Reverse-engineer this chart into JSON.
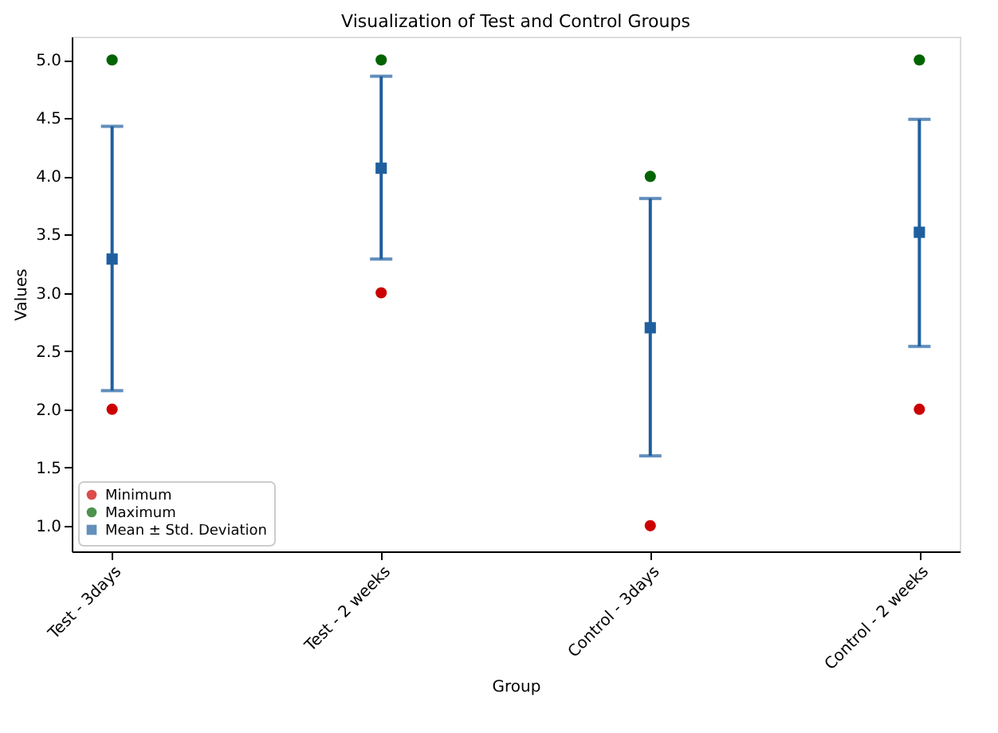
{
  "chart_data": {
    "type": "scatter",
    "title": "Visualization of Test and Control Groups",
    "xlabel": "Group",
    "ylabel": "Values",
    "categories": [
      "Test - 3days",
      "Test - 2 weeks",
      "Control - 3days",
      "Control - 2 weeks"
    ],
    "series": [
      {
        "name": "Minimum",
        "color": "#cc0000",
        "marker": "circle",
        "values": [
          2.0,
          3.0,
          1.0,
          2.0
        ]
      },
      {
        "name": "Maximum",
        "color": "#006400",
        "marker": "circle",
        "values": [
          5.0,
          5.0,
          4.0,
          5.0
        ]
      },
      {
        "name": "Mean ± Std. Deviation",
        "color": "#1f5f9f",
        "marker": "square",
        "values": [
          3.29,
          4.07,
          2.7,
          3.52
        ],
        "errors": [
          [
            2.16,
            4.43
          ],
          [
            3.29,
            4.86
          ],
          [
            1.6,
            3.81
          ],
          [
            2.54,
            4.49
          ]
        ]
      }
    ],
    "ylim": [
      0.78,
      5.2
    ],
    "yticks": [
      {
        "value": 1,
        "label": "1.0"
      },
      1.5,
      {
        "value": 2,
        "label": "2.0"
      },
      2.5,
      {
        "value": 3,
        "label": "3.0"
      },
      3.5,
      {
        "value": 4,
        "label": "4.0"
      },
      4.5,
      {
        "value": 5,
        "label": "5.0"
      }
    ],
    "grid": false,
    "legend": "bottom left"
  }
}
